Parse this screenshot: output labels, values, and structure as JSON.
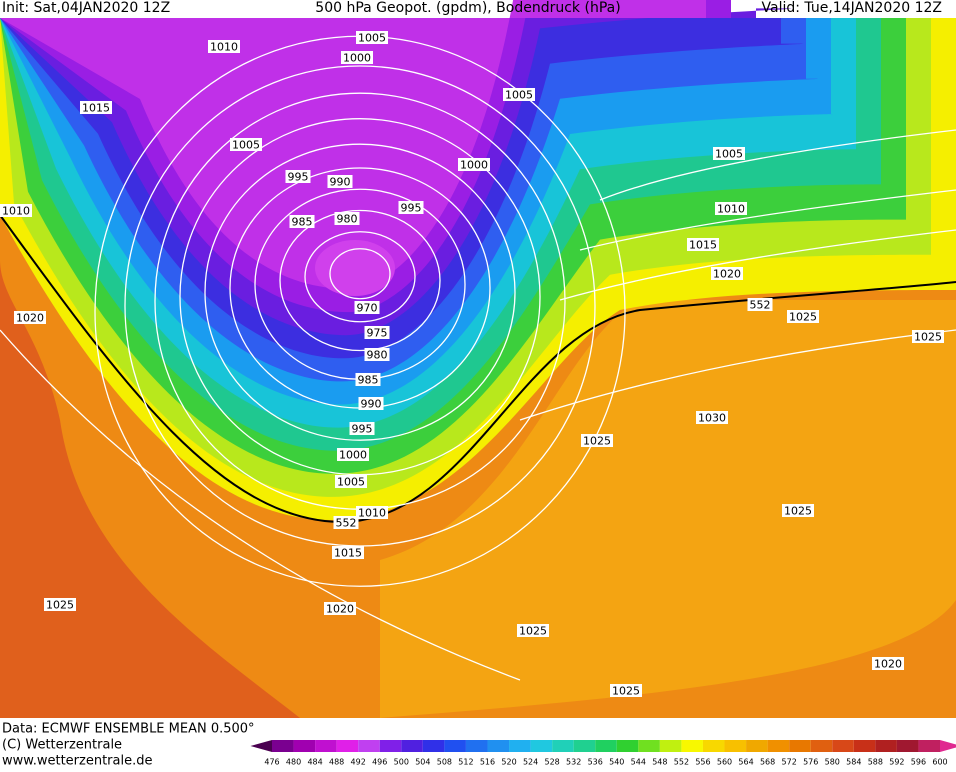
{
  "header": {
    "init": "Init: Sat,04JAN2020 12Z",
    "title": "500 hPa Geopot. (gpdm), Bodendruck (hPa)",
    "valid": "Valid: Tue,14JAN2020 12Z"
  },
  "map": {
    "labels": [
      1005,
      1000,
      1010,
      1015,
      1005,
      1005,
      1000,
      1005,
      995,
      990,
      995,
      1010,
      1010,
      985,
      980,
      1015,
      1020,
      970,
      552,
      1025,
      1020,
      975,
      1025,
      980,
      985,
      990,
      1030,
      995,
      1025,
      1000,
      1005,
      1025,
      1010,
      552,
      1015,
      1025,
      1020,
      1025,
      1020,
      1025
    ]
  },
  "footer": {
    "data": "Data: ECMWF ENSEMBLE MEAN 0.500°",
    "copyright": "(C) Wetterzentrale",
    "url": "www.wetterzentrale.de"
  },
  "colorbar": {
    "labels": [
      476,
      480,
      484,
      488,
      492,
      496,
      500,
      504,
      508,
      512,
      516,
      520,
      524,
      528,
      532,
      536,
      540,
      544,
      548,
      552,
      556,
      560,
      564,
      568,
      572,
      576,
      580,
      584,
      588,
      592,
      596,
      600
    ]
  }
}
